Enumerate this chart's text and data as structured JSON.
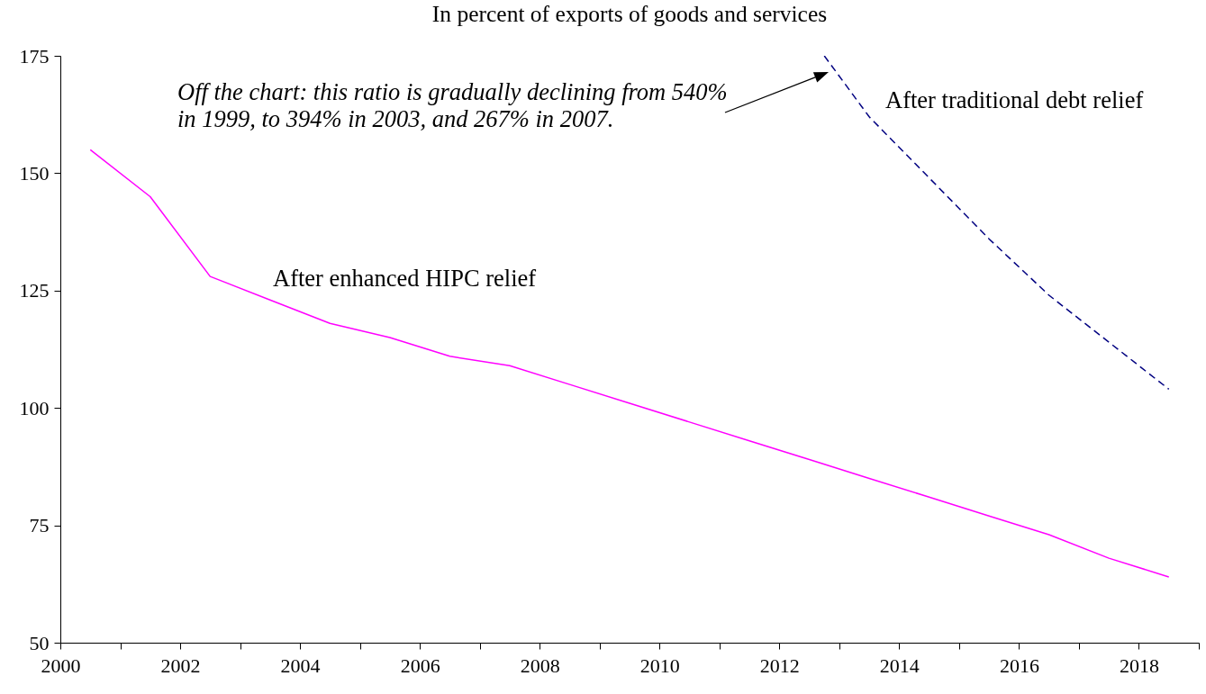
{
  "chart_data": {
    "type": "line",
    "title": "In percent of exports of goods and services",
    "x": [
      2000.5,
      2001.5,
      2002.5,
      2003.5,
      2004.5,
      2005.5,
      2006.5,
      2007.5,
      2008.5,
      2009.5,
      2010.5,
      2011.5,
      2012.5,
      2013.5,
      2014.5,
      2015.5,
      2016.5,
      2017.5,
      2018.5
    ],
    "series": [
      {
        "name": "After enhanced HIPC relief",
        "color": "#ff00ff",
        "line_style": "solid",
        "values": [
          155,
          145,
          128,
          123,
          118,
          115,
          111,
          109,
          105,
          101,
          97,
          93,
          89,
          85,
          81,
          77,
          73,
          68,
          64
        ]
      },
      {
        "name": "After traditional debt relief",
        "color": "#000080",
        "line_style": "dashed",
        "x": [
          2012.75,
          2013.5,
          2014.5,
          2015.5,
          2016.5,
          2017.5,
          2018.5
        ],
        "values": [
          175,
          162,
          149,
          136,
          124,
          114,
          104
        ]
      }
    ],
    "xlim": [
      2000,
      2019
    ],
    "xticks": [
      2000,
      {
        "value": 2001,
        "label": null
      },
      2002,
      {
        "value": 2003,
        "label": null
      },
      2004,
      {
        "value": 2005,
        "label": null
      },
      2006,
      {
        "value": 2007,
        "label": null
      },
      2008,
      {
        "value": 2009,
        "label": null
      },
      2010,
      {
        "value": 2011,
        "label": null
      },
      2012,
      {
        "value": 2013,
        "label": null
      },
      2014,
      {
        "value": 2015,
        "label": null
      },
      2016,
      {
        "value": 2017,
        "label": null
      },
      2018,
      {
        "value": 2019,
        "label": null
      }
    ],
    "ylim": [
      50,
      175
    ],
    "yticks": [
      50,
      75,
      100,
      125,
      150,
      175
    ],
    "annotations": [
      "Off the chart: this ratio is gradually declining from 540%\nin 1999, to 394% in 2003, and 267% in 2007."
    ]
  }
}
